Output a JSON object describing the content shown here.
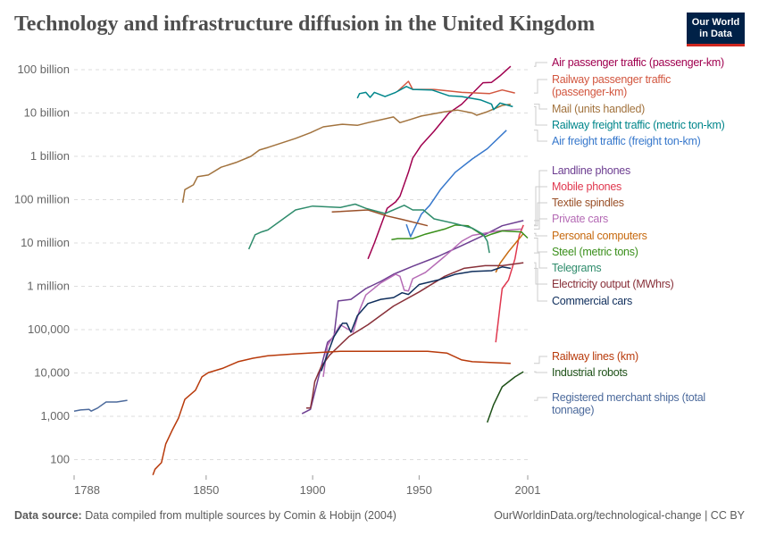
{
  "header": {
    "title": "Technology and infrastructure diffusion in the United Kingdom",
    "logo_line1": "Our World",
    "logo_line2": "in Data"
  },
  "footer": {
    "source_label": "Data source:",
    "source_text": "Data compiled from multiple sources by Comin & Hobijn (2004)",
    "credit": "OurWorldinData.org/technological-change | CC BY"
  },
  "chart_data": {
    "type": "line",
    "title": "Technology and infrastructure diffusion in the United Kingdom",
    "x_scale": "linear",
    "y_scale": "log",
    "xlim": [
      1788,
      2001
    ],
    "ylim": [
      43,
      150000000000
    ],
    "grid": "horizontal dashed",
    "legend": "right, labels at line ends",
    "x_ticks": [
      1788,
      1850,
      1900,
      1950,
      2001
    ],
    "y_ticks": [
      {
        "v": 100000000000,
        "label": "100 billion"
      },
      {
        "v": 10000000000,
        "label": "10 billion"
      },
      {
        "v": 1000000000,
        "label": "1 billion"
      },
      {
        "v": 100000000,
        "label": "100 million"
      },
      {
        "v": 10000000,
        "label": "10 million"
      },
      {
        "v": 1000000,
        "label": "1 million"
      },
      {
        "v": 100000,
        "label": "100,000"
      },
      {
        "v": 10000,
        "label": "10,000"
      },
      {
        "v": 1000,
        "label": "1,000"
      },
      {
        "v": 100,
        "label": "100"
      }
    ],
    "series": [
      {
        "name": "Air passenger traffic (passenger-km)",
        "color": "#a0004f",
        "label_lines": [
          "Air passenger traffic (passenger-km)"
        ],
        "points": [
          [
            1926,
            4300000.0
          ],
          [
            1929,
            10000000.0
          ],
          [
            1932,
            25000000.0
          ],
          [
            1935,
            63000000.0
          ],
          [
            1939,
            89000000.0
          ],
          [
            1941,
            120000000.0
          ],
          [
            1945,
            430000000.0
          ],
          [
            1947,
            910000000.0
          ],
          [
            1951,
            1800000000.0
          ],
          [
            1957,
            3800000000.0
          ],
          [
            1964,
            10000000000.0
          ],
          [
            1970,
            16000000000.0
          ],
          [
            1980,
            50000000000.0
          ],
          [
            1984,
            51000000000.0
          ],
          [
            1988,
            72000000000.0
          ],
          [
            1993,
            120000000000.0
          ]
        ]
      },
      {
        "name": "Railway passenger traffic (passenger-km)",
        "color": "#d2563f",
        "label_lines": [
          "Railway passenger traffic",
          "(passenger-km)"
        ],
        "points": [
          [
            1940,
            32000000000.0
          ],
          [
            1945,
            54000000000.0
          ],
          [
            1947,
            35000000000.0
          ],
          [
            1957,
            35000000000.0
          ],
          [
            1970,
            30000000000.0
          ],
          [
            1983,
            28000000000.0
          ],
          [
            1989,
            34000000000.0
          ],
          [
            1995,
            29000000000.0
          ]
        ]
      },
      {
        "name": "Mail (units handled)",
        "color": "#a2733e",
        "label_lines": [
          "Mail (units handled)"
        ],
        "points": [
          [
            1839,
            85000000.0
          ],
          [
            1840,
            170000000.0
          ],
          [
            1844,
            220000000.0
          ],
          [
            1846,
            340000000.0
          ],
          [
            1851,
            370000000.0
          ],
          [
            1857,
            560000000.0
          ],
          [
            1864,
            720000000.0
          ],
          [
            1871,
            1000000000.0
          ],
          [
            1875,
            1400000000.0
          ],
          [
            1879,
            1600000000.0
          ],
          [
            1892,
            2600000000.0
          ],
          [
            1899,
            3500000000.0
          ],
          [
            1905,
            4800000000.0
          ],
          [
            1914,
            5500000000.0
          ],
          [
            1921,
            5200000000.0
          ],
          [
            1926,
            6000000000.0
          ],
          [
            1938,
            8100000000.0
          ],
          [
            1941,
            6000000000.0
          ],
          [
            1946,
            7100000000.0
          ],
          [
            1951,
            8500000000.0
          ],
          [
            1962,
            10700000000.0
          ],
          [
            1968,
            11700000000.0
          ],
          [
            1975,
            10000000000.0
          ],
          [
            1977,
            8900000000.0
          ],
          [
            1982,
            10700000000.0
          ],
          [
            1989,
            15000000000.0
          ],
          [
            1993,
            16000000000.0
          ]
        ]
      },
      {
        "name": "Railway freight traffic (metric ton-km)",
        "color": "#00868b",
        "label_lines": [
          "Railway freight traffic (metric ton-km)"
        ],
        "points": [
          [
            1921,
            22000000000.0
          ],
          [
            1922,
            28000000000.0
          ],
          [
            1925,
            30000000000.0
          ],
          [
            1927,
            23000000000.0
          ],
          [
            1929,
            30000000000.0
          ],
          [
            1934,
            24000000000.0
          ],
          [
            1939,
            30000000000.0
          ],
          [
            1944,
            41000000000.0
          ],
          [
            1947,
            35000000000.0
          ],
          [
            1956,
            34000000000.0
          ],
          [
            1964,
            25000000000.0
          ],
          [
            1970,
            24000000000.0
          ],
          [
            1979,
            20000000000.0
          ],
          [
            1984,
            16000000000.0
          ],
          [
            1985,
            12000000000.0
          ],
          [
            1988,
            17000000000.0
          ],
          [
            1994,
            14000000000.0
          ]
        ]
      },
      {
        "name": "Air freight traffic (freight ton-km)",
        "color": "#3778cc",
        "label_lines": [
          "Air freight traffic (freight ton-km)"
        ],
        "points": [
          [
            1944,
            27000000.0
          ],
          [
            1946,
            14000000.0
          ],
          [
            1951,
            46000000.0
          ],
          [
            1955,
            74000000.0
          ],
          [
            1960,
            170000000.0
          ],
          [
            1967,
            430000000.0
          ],
          [
            1975,
            870000000.0
          ],
          [
            1982,
            1500000000.0
          ],
          [
            1991,
            4000000000.0
          ]
        ]
      },
      {
        "name": "Landline phones",
        "color": "#6d3e91",
        "label_lines": [
          "Landline phones"
        ],
        "points": [
          [
            1895,
            1150
          ],
          [
            1899,
            1450
          ],
          [
            1903,
            8900
          ],
          [
            1907,
            51000
          ],
          [
            1910,
            69000
          ],
          [
            1912,
            460000
          ],
          [
            1918,
            500000
          ],
          [
            1925,
            890000
          ],
          [
            1932,
            1300000.0
          ],
          [
            1938,
            1900000.0
          ],
          [
            1947,
            2900000.0
          ],
          [
            1959,
            4900000.0
          ],
          [
            1970,
            8700000.0
          ],
          [
            1979,
            14000000.0
          ],
          [
            1989,
            25000000.0
          ],
          [
            1999,
            33000000.0
          ]
        ]
      },
      {
        "name": "Mobile phones",
        "color": "#e0384f",
        "label_lines": [
          "Mobile phones"
        ],
        "points": [
          [
            1986,
            51000
          ],
          [
            1988,
            350000
          ],
          [
            1989,
            890000
          ],
          [
            1992,
            1400000.0
          ],
          [
            1995,
            4300000.0
          ],
          [
            1997,
            15000000.0
          ],
          [
            1999,
            26000000.0
          ]
        ]
      },
      {
        "name": "Textile spindles",
        "color": "#9a5129",
        "label_lines": [
          "Textile spindles"
        ],
        "points": [
          [
            1909,
            52000000.0
          ],
          [
            1926,
            58000000.0
          ],
          [
            1935,
            42000000.0
          ],
          [
            1942,
            35000000.0
          ],
          [
            1954,
            25000000.0
          ]
        ]
      },
      {
        "name": "Private cars",
        "color": "#b56bb5",
        "label_lines": [
          "Private cars"
        ],
        "points": [
          [
            1905,
            8100
          ],
          [
            1907,
            43000
          ],
          [
            1913,
            130000
          ],
          [
            1919,
            87000
          ],
          [
            1922,
            280000
          ],
          [
            1925,
            630000
          ],
          [
            1932,
            1200000.0
          ],
          [
            1939,
            1900000.0
          ],
          [
            1941,
            1700000.0
          ],
          [
            1943,
            810000
          ],
          [
            1945,
            780000
          ],
          [
            1947,
            1500000.0
          ],
          [
            1953,
            2100000.0
          ],
          [
            1962,
            4900000.0
          ],
          [
            1970,
            11000000.0
          ],
          [
            1975,
            15000000.0
          ],
          [
            1987,
            19000000.0
          ],
          [
            1998,
            21000000.0
          ]
        ]
      },
      {
        "name": "Personal computers",
        "color": "#c76a10",
        "label_lines": [
          "Personal computers"
        ],
        "points": [
          [
            1986,
            2100000.0
          ],
          [
            1988,
            3400000.0
          ],
          [
            1992,
            6300000.0
          ],
          [
            1996,
            11000000.0
          ],
          [
            1999,
            16600000.0
          ]
        ]
      },
      {
        "name": "Steel (metric tons)",
        "color": "#3a8f1b",
        "label_lines": [
          "Steel (metric tons)"
        ],
        "points": [
          [
            1937,
            12000000.0
          ],
          [
            1940,
            12600000.0
          ],
          [
            1947,
            12600000.0
          ],
          [
            1953,
            16000000.0
          ],
          [
            1962,
            21000000.0
          ],
          [
            1967,
            26000000.0
          ],
          [
            1973,
            25000000.0
          ],
          [
            1981,
            14000000.0
          ],
          [
            1984,
            16000000.0
          ],
          [
            1989,
            19000000.0
          ],
          [
            1998,
            18000000.0
          ],
          [
            2001,
            13000000.0
          ]
        ]
      },
      {
        "name": "Telegrams",
        "color": "#2f8c6c",
        "label_lines": [
          "Telegrams"
        ],
        "points": [
          [
            1870,
            7200000.0
          ],
          [
            1873,
            15500000.0
          ],
          [
            1876,
            18000000.0
          ],
          [
            1879,
            20000000.0
          ],
          [
            1892,
            58000000.0
          ],
          [
            1900,
            71000000.0
          ],
          [
            1913,
            66000000.0
          ],
          [
            1920,
            79000000.0
          ],
          [
            1925,
            63000000.0
          ],
          [
            1934,
            48000000.0
          ],
          [
            1943,
            74000000.0
          ],
          [
            1947,
            58000000.0
          ],
          [
            1952,
            58000000.0
          ],
          [
            1957,
            36000000.0
          ],
          [
            1967,
            28000000.0
          ],
          [
            1975,
            22000000.0
          ],
          [
            1980,
            16000000.0
          ],
          [
            1982,
            11000000.0
          ],
          [
            1983,
            5900000.0
          ]
        ]
      },
      {
        "name": "Electricity output (MWhrs)",
        "color": "#883039",
        "label_lines": [
          "Electricity output (MWhrs)"
        ],
        "points": [
          [
            1897,
            1550
          ],
          [
            1899,
            1550
          ],
          [
            1900,
            2950
          ],
          [
            1901,
            6300
          ],
          [
            1904,
            14000
          ],
          [
            1908,
            26000
          ],
          [
            1917,
            69000
          ],
          [
            1926,
            130000
          ],
          [
            1938,
            350000
          ],
          [
            1950,
            740000
          ],
          [
            1962,
            1700000.0
          ],
          [
            1971,
            2600000.0
          ],
          [
            1981,
            3000000.0
          ],
          [
            1989,
            3000000.0
          ],
          [
            1999,
            3500000.0
          ]
        ]
      },
      {
        "name": "Commercial cars",
        "color": "#0f2e5c",
        "label_lines": [
          "Commercial cars"
        ],
        "points": [
          [
            1904,
            11000
          ],
          [
            1910,
            69000
          ],
          [
            1914,
            140000
          ],
          [
            1916,
            140000
          ],
          [
            1918,
            87000
          ],
          [
            1921,
            210000
          ],
          [
            1926,
            400000
          ],
          [
            1932,
            500000
          ],
          [
            1938,
            550000
          ],
          [
            1942,
            710000
          ],
          [
            1945,
            650000
          ],
          [
            1950,
            1100000.0
          ],
          [
            1959,
            1400000.0
          ],
          [
            1967,
            1900000.0
          ],
          [
            1975,
            2200000.0
          ],
          [
            1984,
            2300000.0
          ],
          [
            1989,
            2800000.0
          ],
          [
            1993,
            2600000.0
          ]
        ]
      },
      {
        "name": "Railway lines (km)",
        "color": "#b83a0b",
        "label_lines": [
          "Railway lines (km)"
        ],
        "points": [
          [
            1825,
            44
          ],
          [
            1826,
            60
          ],
          [
            1829,
            85
          ],
          [
            1831,
            230
          ],
          [
            1834,
            470
          ],
          [
            1837,
            910
          ],
          [
            1840,
            2450
          ],
          [
            1845,
            4000
          ],
          [
            1848,
            8100
          ],
          [
            1851,
            10200
          ],
          [
            1858,
            12900
          ],
          [
            1865,
            18200
          ],
          [
            1872,
            21900
          ],
          [
            1879,
            25000
          ],
          [
            1891,
            27500
          ],
          [
            1913,
            31600
          ],
          [
            1954,
            31600
          ],
          [
            1963,
            28800
          ],
          [
            1970,
            20000
          ],
          [
            1975,
            18200
          ],
          [
            1993,
            16600
          ]
        ]
      },
      {
        "name": "Industrial robots",
        "color": "#1e5118",
        "label_lines": [
          "Industrial robots"
        ],
        "points": [
          [
            1982,
            720
          ],
          [
            1985,
            1860
          ],
          [
            1989,
            4800
          ],
          [
            1995,
            8100
          ],
          [
            1999,
            10700
          ]
        ]
      },
      {
        "name": "Registered merchant ships (total tonnage)",
        "color": "#4c6a9c",
        "label_lines": [
          "Registered merchant ships (total",
          "tonnage)"
        ],
        "points": [
          [
            1788,
            1320
          ],
          [
            1791,
            1400
          ],
          [
            1795,
            1450
          ],
          [
            1796,
            1320
          ],
          [
            1799,
            1550
          ],
          [
            1803,
            2140
          ],
          [
            1808,
            2140
          ],
          [
            1813,
            2340
          ]
        ]
      }
    ]
  }
}
